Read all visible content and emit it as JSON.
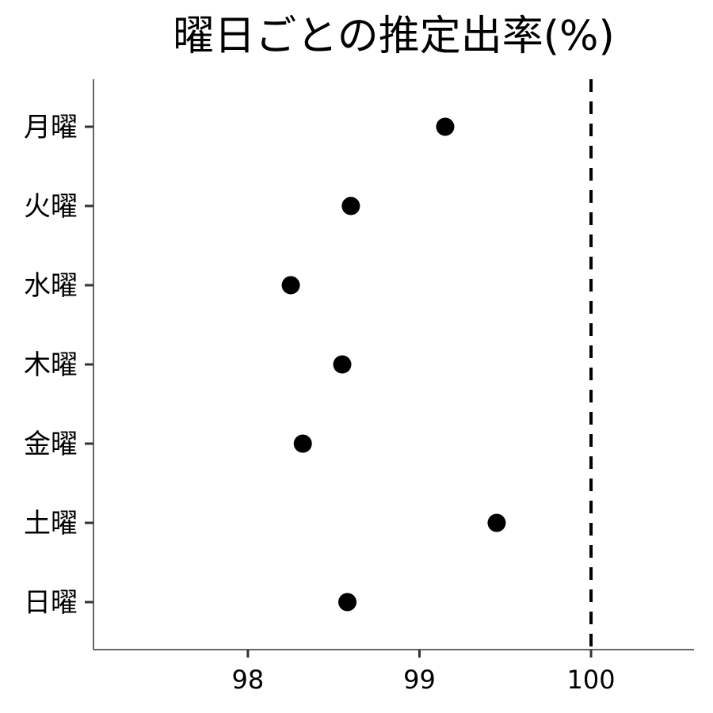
{
  "chart_data": {
    "type": "scatter",
    "title": "曜日ごとの推定出率(%)",
    "xlabel": "",
    "ylabel": "",
    "categories": [
      "月曜",
      "火曜",
      "水曜",
      "木曜",
      "金曜",
      "土曜",
      "日曜"
    ],
    "values": [
      99.15,
      98.6,
      98.25,
      98.55,
      98.32,
      99.45,
      98.58
    ],
    "xlim": [
      97.1,
      100.6
    ],
    "x_ticks": [
      "98",
      "99",
      "100"
    ],
    "reference_line": {
      "x": 100,
      "style": "dashed"
    },
    "grid": false,
    "legend": "none",
    "colors": {
      "point": "#000000",
      "axis": "#333333",
      "reference": "#000000"
    }
  }
}
